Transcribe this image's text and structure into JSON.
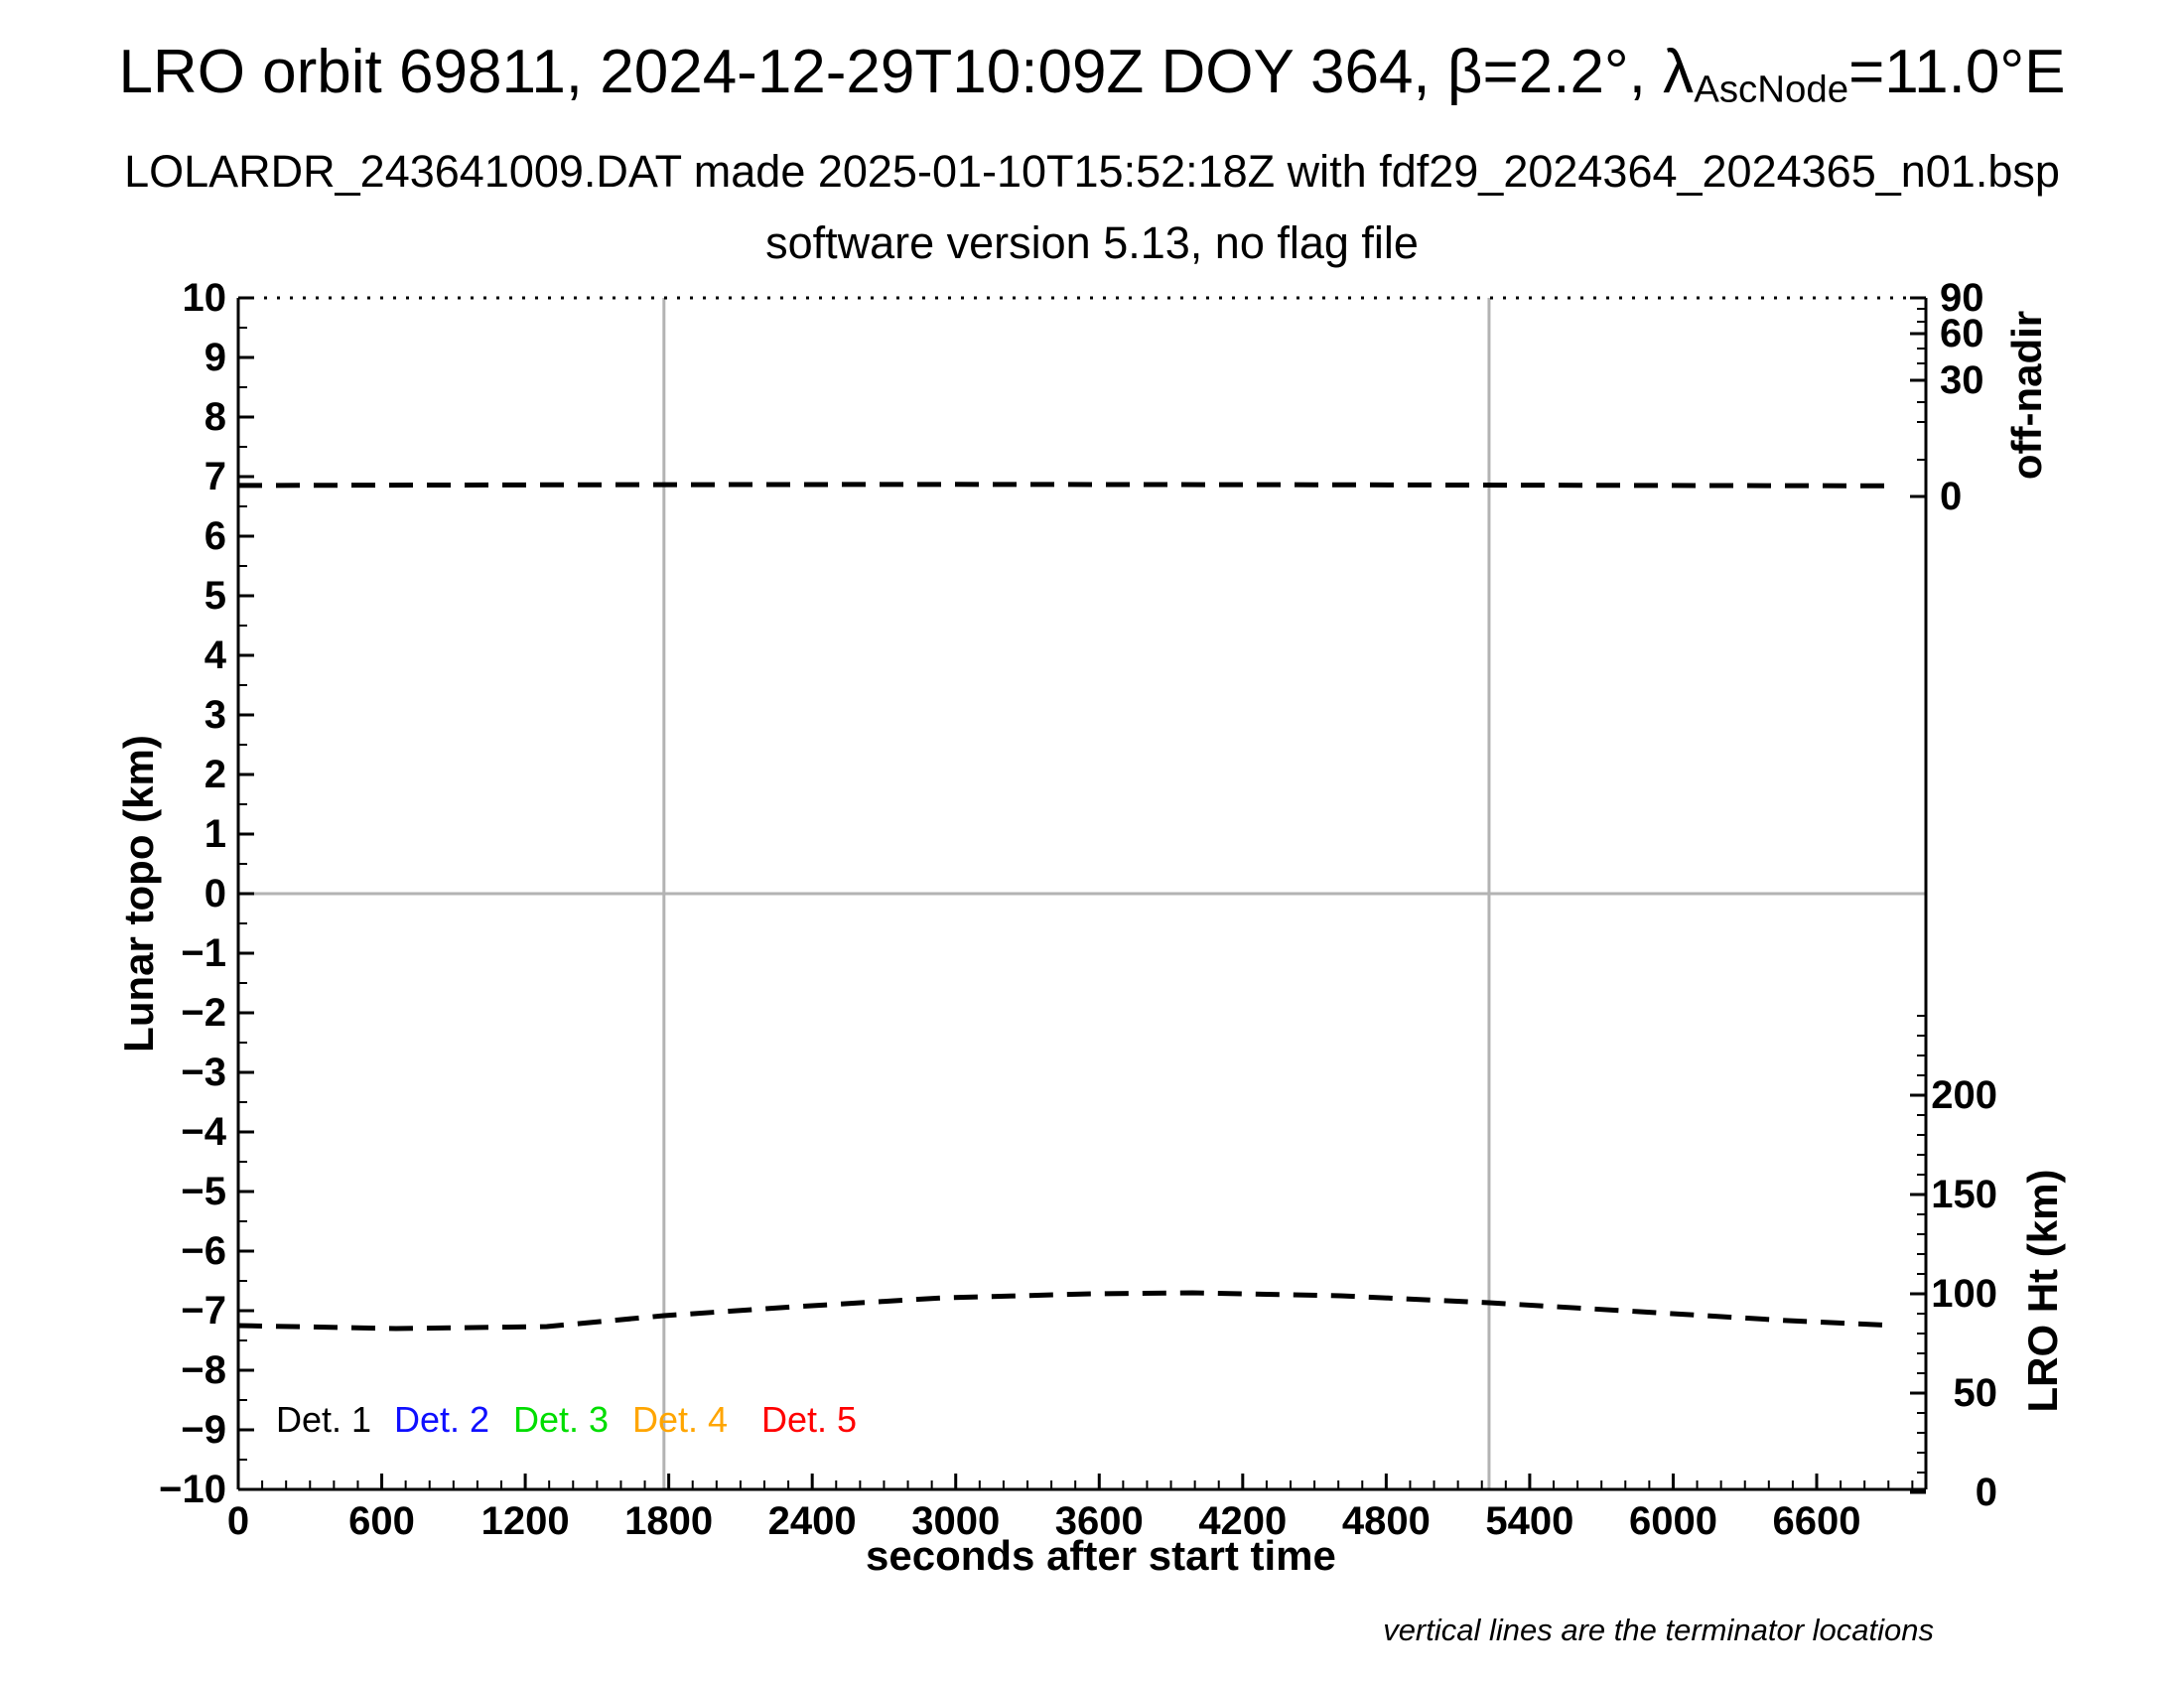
{
  "header": {
    "title_main": "LRO orbit 69811, 2024-12-29T10:09Z DOY 364, β=2.2°, λ",
    "title_lambda_sub": "AscNode",
    "title_tail": "=11.0°E",
    "subtitle": "LOLARDR_243641009.DAT made 2025-01-10T15:52:18Z with fdf29_2024364_2024365_n01.bsp",
    "version_line": "software version 5.13, no flag file"
  },
  "axes": {
    "x": {
      "label": "seconds after start time",
      "major_ticks": [
        0,
        600,
        1200,
        1800,
        2400,
        3000,
        3600,
        4200,
        4800,
        5400,
        6000,
        6600
      ],
      "minor_step": 100,
      "max": 7050
    },
    "y_left": {
      "label": "Lunar topo (km)",
      "ticks": [
        10,
        9,
        8,
        7,
        6,
        5,
        4,
        3,
        2,
        1,
        0,
        -1,
        -2,
        -3,
        -4,
        -5,
        -6,
        -7,
        -8,
        -9,
        -10
      ],
      "minor_step": 0.5,
      "range": [
        -10,
        10
      ]
    },
    "y_right_top": {
      "label": "off-nadir",
      "ticks": [
        {
          "v": "90",
          "y": 300
        },
        {
          "v": "60",
          "y": 336
        },
        {
          "v": "30",
          "y": 383
        },
        {
          "v": "0",
          "y": 500
        }
      ],
      "minor_y": [
        311,
        324,
        351,
        366,
        405,
        425,
        463
      ]
    },
    "y_right_bottom": {
      "label": "LRO Ht (km)",
      "ticks": [
        200,
        150,
        100,
        50,
        0
      ],
      "minor_step": 10
    }
  },
  "legend": {
    "items": [
      {
        "label": "Det. 1",
        "color": "#000000"
      },
      {
        "label": "Det. 2",
        "color": "#0f0fff"
      },
      {
        "label": "Det. 3",
        "color": "#00dd00"
      },
      {
        "label": "Det. 4",
        "color": "#ffa500"
      },
      {
        "label": "Det. 5",
        "color": "#ff0000"
      }
    ]
  },
  "note": "vertical lines are the terminator locations",
  "colors": {
    "gridline_gray": "#b3b3b3",
    "curve_black": "#000000"
  },
  "chart_data": {
    "type": "line",
    "xlabel": "seconds after start time",
    "xlim": [
      0,
      7050
    ],
    "ylim_topo": [
      -10,
      10
    ],
    "grid": "zero-line and terminator verticals only",
    "legend_position": "bottom-left inside plot",
    "series": [
      {
        "name": "off-nadir angle",
        "axis": "right-top (degrees)",
        "style": "dashed",
        "color": "#000000",
        "x": [
          0,
          1500,
          3000,
          4500,
          6000,
          6930
        ],
        "values": [
          3.0,
          3.2,
          3.3,
          3.2,
          3.0,
          2.9
        ]
      },
      {
        "name": "LRO height",
        "axis": "right-bottom (km)",
        "style": "dashed",
        "color": "#000000",
        "x": [
          0,
          660,
          1290,
          1780,
          2330,
          2950,
          3570,
          3990,
          4610,
          5230,
          5860,
          6480,
          6930
        ],
        "values": [
          84,
          82.5,
          83.5,
          89,
          93.5,
          98,
          100,
          100.5,
          99,
          95.5,
          91,
          86.5,
          84
        ]
      }
    ],
    "terminator_lines_x": [
      1780,
      5230
    ]
  }
}
